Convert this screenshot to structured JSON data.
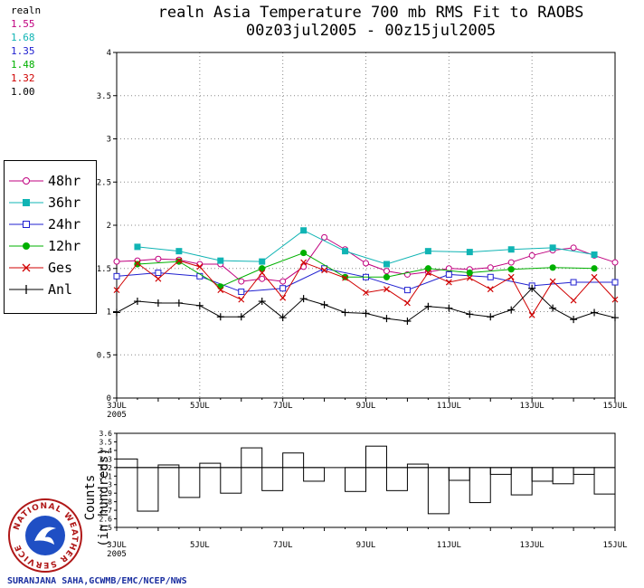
{
  "title_line1": "realn Asia Temperature 700 mb RMS Fit to RAOBS",
  "title_line2": "00z03jul2005 - 00z15jul2005",
  "means": {
    "header": "realn",
    "items": [
      {
        "value": "1.55",
        "color": "#c0007f"
      },
      {
        "value": "1.68",
        "color": "#10b4b4"
      },
      {
        "value": "1.35",
        "color": "#2020d0"
      },
      {
        "value": "1.48",
        "color": "#00b000"
      },
      {
        "value": "1.32",
        "color": "#d00000"
      },
      {
        "value": "1.00",
        "color": "#000000"
      }
    ]
  },
  "legend": [
    {
      "label": "48hr",
      "color": "#c0007f",
      "marker": "open-circle"
    },
    {
      "label": "36hr",
      "color": "#10b4b4",
      "marker": "filled-square"
    },
    {
      "label": "24hr",
      "color": "#2020d0",
      "marker": "open-square"
    },
    {
      "label": "12hr",
      "color": "#00b000",
      "marker": "filled-circle"
    },
    {
      "label": "Ges",
      "color": "#d00000",
      "marker": "x"
    },
    {
      "label": "Anl",
      "color": "#000000",
      "marker": "plus"
    }
  ],
  "count_ylabel_line1": "Counts",
  "count_ylabel_line2": "(in hundreds)",
  "credit": "SURANJANA SAHA,GCWMB/EMC/NCEP/NWS",
  "logo": {
    "text": "NATIONAL WEATHER SERVICE"
  },
  "chart_data": [
    {
      "type": "line",
      "title": "realn Asia Temperature 700 mb RMS Fit to RAOBS",
      "subtitle": "00z03jul2005 - 00z15jul2005",
      "xlim": [
        0,
        24
      ],
      "ylim": [
        0,
        4
      ],
      "x_ticks": [
        {
          "x": 0,
          "label": "3JUL",
          "sub": "2005"
        },
        {
          "x": 4,
          "label": "5JUL"
        },
        {
          "x": 8,
          "label": "7JUL"
        },
        {
          "x": 12,
          "label": "9JUL"
        },
        {
          "x": 16,
          "label": "11JUL"
        },
        {
          "x": 20,
          "label": "13JUL"
        },
        {
          "x": 24,
          "label": "15JUL"
        }
      ],
      "y_ticks": [
        "0",
        "0.5",
        "1",
        "1.5",
        "2",
        "2.5",
        "3",
        "3.5",
        "4"
      ],
      "grid": true,
      "series": [
        {
          "name": "48hr",
          "color": "#c0007f",
          "marker": "open-circle",
          "x": [
            0,
            1,
            2,
            3,
            4,
            5,
            6,
            7,
            8,
            9,
            10,
            11,
            12,
            13,
            14,
            15,
            16,
            17,
            18,
            19,
            20,
            21,
            22,
            23,
            24
          ],
          "values": [
            1.58,
            1.59,
            1.61,
            1.6,
            1.55,
            1.55,
            1.35,
            1.38,
            1.35,
            1.52,
            1.86,
            1.72,
            1.56,
            1.47,
            1.43,
            1.46,
            1.5,
            1.49,
            1.51,
            1.57,
            1.65,
            1.71,
            1.74,
            1.65,
            1.57
          ]
        },
        {
          "name": "36hr",
          "color": "#10b4b4",
          "marker": "filled-square",
          "x": [
            1,
            3,
            5,
            7,
            9,
            11,
            13,
            15,
            17,
            19,
            21,
            23
          ],
          "values": [
            1.75,
            1.7,
            1.59,
            1.58,
            1.94,
            1.7,
            1.55,
            1.7,
            1.69,
            1.72,
            1.74,
            1.66
          ]
        },
        {
          "name": "24hr",
          "color": "#2020d0",
          "marker": "open-square",
          "x": [
            0,
            2,
            4,
            6,
            8,
            10,
            12,
            14,
            16,
            18,
            20,
            22,
            24
          ],
          "values": [
            1.41,
            1.45,
            1.41,
            1.23,
            1.27,
            1.5,
            1.4,
            1.25,
            1.43,
            1.4,
            1.3,
            1.34,
            1.34
          ]
        },
        {
          "name": "12hr",
          "color": "#00b000",
          "marker": "filled-circle",
          "x": [
            1,
            3,
            5,
            7,
            9,
            11,
            13,
            15,
            17,
            19,
            21,
            23
          ],
          "values": [
            1.55,
            1.58,
            1.29,
            1.5,
            1.68,
            1.4,
            1.4,
            1.5,
            1.45,
            1.49,
            1.51,
            1.5
          ]
        },
        {
          "name": "Ges",
          "color": "#d00000",
          "marker": "x",
          "x": [
            0,
            1,
            2,
            3,
            4,
            5,
            6,
            7,
            8,
            9,
            10,
            11,
            12,
            13,
            14,
            15,
            16,
            17,
            18,
            19,
            20,
            21,
            22,
            23,
            24
          ],
          "values": [
            1.25,
            1.56,
            1.38,
            1.59,
            1.52,
            1.25,
            1.14,
            1.45,
            1.16,
            1.57,
            1.48,
            1.39,
            1.22,
            1.26,
            1.1,
            1.45,
            1.34,
            1.39,
            1.26,
            1.4,
            0.96,
            1.35,
            1.13,
            1.4,
            1.14
          ]
        },
        {
          "name": "Anl",
          "color": "#000000",
          "marker": "plus",
          "x": [
            0,
            1,
            2,
            3,
            4,
            5,
            6,
            7,
            8,
            9,
            10,
            11,
            12,
            13,
            14,
            15,
            16,
            17,
            18,
            19,
            20,
            21,
            22,
            23,
            24
          ],
          "values": [
            0.99,
            1.12,
            1.1,
            1.1,
            1.07,
            0.94,
            0.94,
            1.12,
            0.93,
            1.15,
            1.08,
            0.99,
            0.98,
            0.92,
            0.89,
            1.06,
            1.04,
            0.97,
            0.94,
            1.02,
            1.27,
            1.04,
            0.91,
            0.99,
            0.93
          ]
        }
      ]
    },
    {
      "type": "bar",
      "title": "",
      "ylabel": "Counts (in hundreds)",
      "xlim": [
        0,
        24
      ],
      "ylim": [
        2.5,
        3.6
      ],
      "baseline": 3.2,
      "y_ticks": [
        "2.5",
        "2.6",
        "2.7",
        "2.8",
        "2.9",
        "3",
        "3.1",
        "3.2",
        "3.3",
        "3.4",
        "3.5",
        "3.6"
      ],
      "x_ticks": [
        {
          "x": 0,
          "label": "3JUL",
          "sub": "2005"
        },
        {
          "x": 4,
          "label": "5JUL"
        },
        {
          "x": 8,
          "label": "7JUL"
        },
        {
          "x": 12,
          "label": "9JUL"
        },
        {
          "x": 16,
          "label": "11JUL"
        },
        {
          "x": 20,
          "label": "13JUL"
        },
        {
          "x": 24,
          "label": "15JUL"
        }
      ],
      "x": [
        0,
        1,
        2,
        3,
        4,
        5,
        6,
        7,
        8,
        9,
        10,
        11,
        12,
        13,
        14,
        15,
        16,
        17,
        18,
        19,
        20,
        21,
        22,
        23
      ],
      "values": [
        3.3,
        2.69,
        3.23,
        2.85,
        3.25,
        2.9,
        3.43,
        2.93,
        3.37,
        3.04,
        3.2,
        2.92,
        3.45,
        2.93,
        3.24,
        2.66,
        3.05,
        2.79,
        3.12,
        2.88,
        3.04,
        3.01,
        3.12,
        2.89
      ]
    }
  ]
}
